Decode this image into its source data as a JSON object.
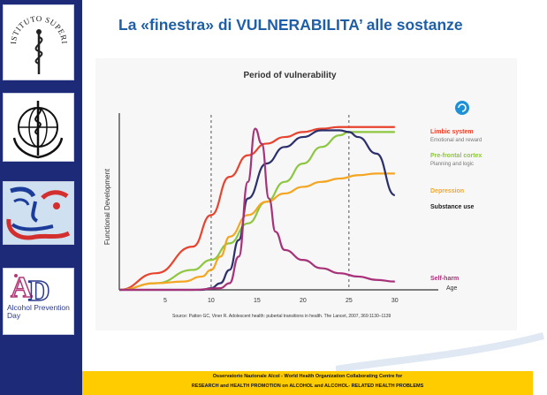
{
  "slide": {
    "title": "La «finestra» di VULNERABILITA’ alle sostanze"
  },
  "logos": [
    {
      "icon": "iss-logo-icon",
      "text": "ISTITUTO SUPERIORE DI SANITÀ"
    },
    {
      "icon": "who-logo-icon"
    },
    {
      "icon": "face-logo-icon"
    },
    {
      "icon": "alcohol-prevention-day-logo-icon",
      "text": "Alcohol Prevention Day"
    }
  ],
  "footer": {
    "line1": "Osservatorio Nazionale Alcol  - World Health Organization Collaborating   Centre   for",
    "line2": "RESEARCH and HEALTH   PROMOTION   on    ALCOHOL   and ALCOHOL- RELATED   HEALTH   PROBLEMS",
    "color": "#ffcc00"
  },
  "chart_data": {
    "type": "line",
    "title": "Period of vulnerability",
    "xlabel": "Age",
    "ylabel": "Functional Development",
    "xlim": [
      0,
      33
    ],
    "ylim": [
      0,
      100
    ],
    "xticks": [
      5,
      10,
      15,
      20,
      25,
      30
    ],
    "vlines": [
      10,
      25
    ],
    "source": "Source: Patton GC, Viner R. Adolescent health: pubertal transitions in health. The Lancet, 2007, 369:1130–1139",
    "series": [
      {
        "name": "Limbic system",
        "sublabel": "Emotional and reward",
        "color": "#e8432e",
        "x": [
          0,
          4,
          8,
          10,
          12,
          14,
          16,
          18,
          20,
          22,
          24,
          26,
          28,
          30
        ],
        "y": [
          0,
          10,
          26,
          45,
          68,
          81,
          88,
          92,
          95,
          97,
          98,
          98,
          98,
          98
        ]
      },
      {
        "name": "Pre-frontal cortex",
        "sublabel": "Planning and logic",
        "color": "#8dc63f",
        "x": [
          0,
          4,
          8,
          10,
          12,
          14,
          16,
          18,
          20,
          22,
          24,
          25,
          26,
          28,
          30
        ],
        "y": [
          0,
          4,
          12,
          18,
          28,
          40,
          53,
          65,
          76,
          86,
          93,
          95,
          95,
          95,
          95
        ]
      },
      {
        "name": "Depression",
        "sublabel": "",
        "color": "#f4a623",
        "x": [
          0,
          4,
          7,
          9,
          10,
          11,
          12,
          14,
          16,
          18,
          20,
          22,
          24,
          26,
          28,
          30
        ],
        "y": [
          0,
          4,
          5,
          8,
          12,
          20,
          32,
          45,
          53,
          58,
          62,
          65,
          67,
          69,
          70,
          70
        ]
      },
      {
        "name": "Substance use",
        "sublabel": "",
        "color": "#2b2f6b",
        "x": [
          0,
          9,
          10,
          11,
          12,
          13,
          14,
          16,
          18,
          20,
          22,
          24,
          25,
          26,
          28,
          30
        ],
        "y": [
          0,
          0,
          1,
          4,
          12,
          30,
          55,
          76,
          86,
          92,
          96,
          96,
          95,
          92,
          82,
          57
        ]
      },
      {
        "name": "Self-harm",
        "sublabel": "",
        "color": "#a8327a",
        "x": [
          0,
          8,
          11,
          12,
          13,
          14,
          14.8,
          15.5,
          16.3,
          17,
          18,
          20,
          22,
          24,
          26,
          28,
          30
        ],
        "y": [
          0,
          0,
          1,
          4,
          20,
          65,
          97,
          88,
          55,
          35,
          24,
          18,
          13,
          10,
          8,
          6,
          5
        ]
      }
    ]
  }
}
